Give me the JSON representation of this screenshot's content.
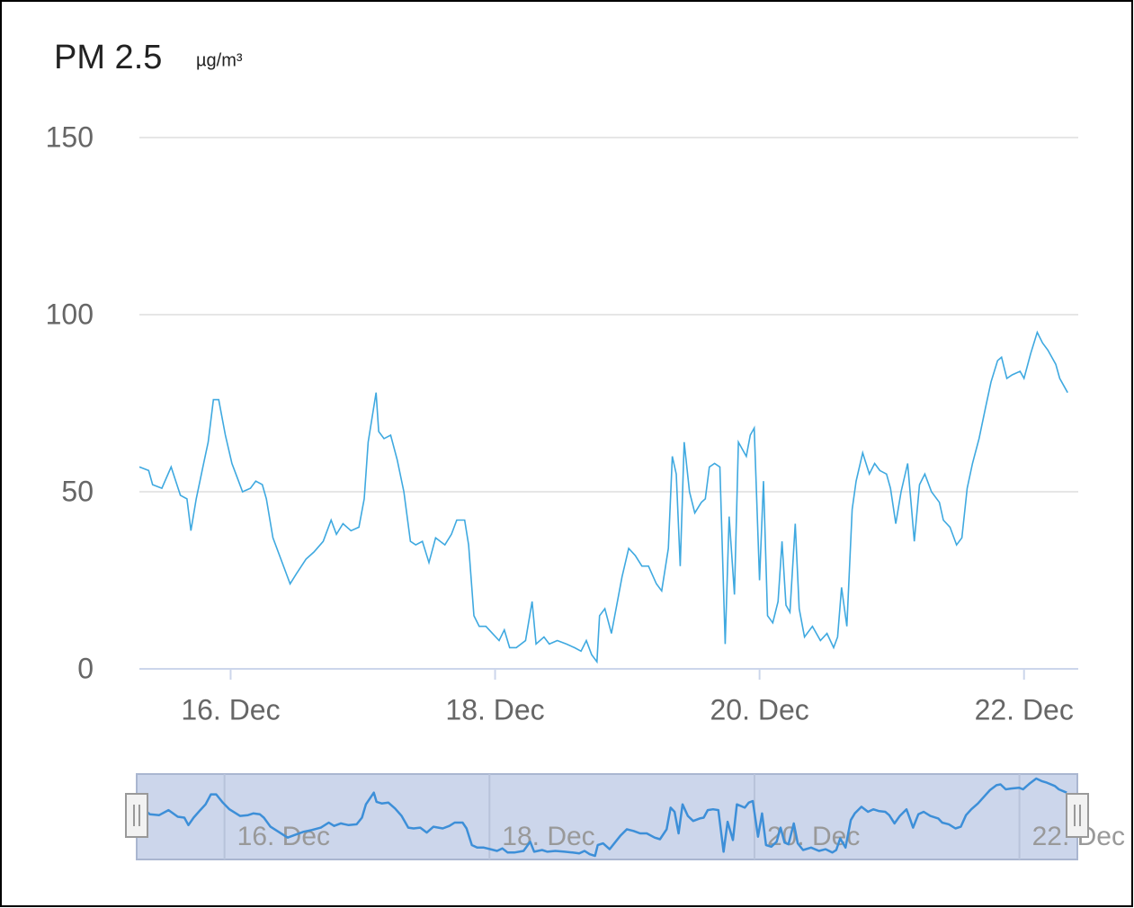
{
  "chart_data": {
    "type": "line",
    "title": "PM 2.5",
    "subtitle": "µg/m³",
    "color": "#3fa9e0",
    "navigator_color": "#3d8fd8",
    "x": [
      15.31,
      15.38,
      15.41,
      15.48,
      15.55,
      15.62,
      15.67,
      15.7,
      15.74,
      15.79,
      15.83,
      15.87,
      15.91,
      15.96,
      16.01,
      16.06,
      16.09,
      16.15,
      16.19,
      16.24,
      16.27,
      16.32,
      16.36,
      16.42,
      16.45,
      16.5,
      16.57,
      16.63,
      16.7,
      16.76,
      16.8,
      16.85,
      16.91,
      16.97,
      17.01,
      17.04,
      17.1,
      17.12,
      17.16,
      17.21,
      17.26,
      17.31,
      17.36,
      17.4,
      17.45,
      17.5,
      17.55,
      17.62,
      17.67,
      17.71,
      17.77,
      17.8,
      17.84,
      17.88,
      17.93,
      17.98,
      18.03,
      18.07,
      18.11,
      18.16,
      18.23,
      18.28,
      18.31,
      18.37,
      18.41,
      18.47,
      18.54,
      18.6,
      18.65,
      18.69,
      18.73,
      18.77,
      18.79,
      18.83,
      18.88,
      18.92,
      18.96,
      19.01,
      19.06,
      19.11,
      19.16,
      19.22,
      19.26,
      19.31,
      19.34,
      19.37,
      19.4,
      19.43,
      19.47,
      19.51,
      19.56,
      19.59,
      19.62,
      19.66,
      19.7,
      19.74,
      19.77,
      19.81,
      19.84,
      19.9,
      19.93,
      19.96,
      20.0,
      20.03,
      20.06,
      20.1,
      20.14,
      20.17,
      20.2,
      20.23,
      20.27,
      20.3,
      20.34,
      20.4,
      20.46,
      20.51,
      20.56,
      20.59,
      20.62,
      20.66,
      20.7,
      20.73,
      20.78,
      20.83,
      20.87,
      20.91,
      20.96,
      20.99,
      21.03,
      21.07,
      21.12,
      21.15,
      21.17,
      21.21,
      21.25,
      21.3,
      21.36,
      21.39,
      21.44,
      21.49,
      21.53,
      21.57,
      21.61,
      21.66,
      21.71,
      21.75,
      21.8,
      21.83,
      21.87,
      21.91,
      21.97,
      22.0,
      22.05,
      22.1,
      22.14,
      22.18,
      22.24,
      22.27,
      22.33
    ],
    "values": [
      57,
      56,
      52,
      51,
      57,
      49,
      48,
      39,
      48,
      57,
      64,
      76,
      76,
      66,
      58,
      53,
      50,
      51,
      53,
      52,
      48,
      37,
      33,
      27,
      24,
      27,
      31,
      33,
      36,
      42,
      38,
      41,
      39,
      40,
      48,
      64,
      78,
      67,
      65,
      66,
      59,
      50,
      36,
      35,
      36,
      30,
      37,
      35,
      38,
      42,
      42,
      35,
      15,
      12,
      12,
      10,
      8,
      11,
      6,
      6,
      8,
      19,
      7,
      9,
      7,
      8,
      7,
      6,
      5,
      8,
      4,
      2,
      15,
      17,
      10,
      18,
      26,
      34,
      32,
      29,
      29,
      24,
      22,
      34,
      60,
      55,
      29,
      64,
      50,
      44,
      47,
      48,
      57,
      58,
      57,
      7,
      43,
      21,
      64,
      60,
      66,
      68,
      25,
      53,
      15,
      13,
      19,
      36,
      18,
      16,
      41,
      17,
      9,
      12,
      8,
      10,
      6,
      9,
      23,
      12,
      45,
      53,
      61,
      55,
      58,
      56,
      55,
      51,
      41,
      50,
      58,
      45,
      36,
      52,
      55,
      50,
      47,
      42,
      40,
      35,
      37,
      51,
      58,
      65,
      74,
      81,
      87,
      88,
      82,
      83,
      84,
      82,
      89,
      95,
      92,
      90,
      86,
      82,
      78
    ],
    "xlim": [
      15.31,
      22.41
    ],
    "xticks": [
      {
        "value": 16,
        "label": "16. Dec"
      },
      {
        "value": 18,
        "label": "18. Dec"
      },
      {
        "value": 20,
        "label": "20. Dec"
      },
      {
        "value": 22,
        "label": "22. Dec"
      }
    ],
    "ylim": [
      0,
      150
    ],
    "yticks": [
      0,
      50,
      100,
      150
    ],
    "grid": true,
    "navigator": true
  }
}
